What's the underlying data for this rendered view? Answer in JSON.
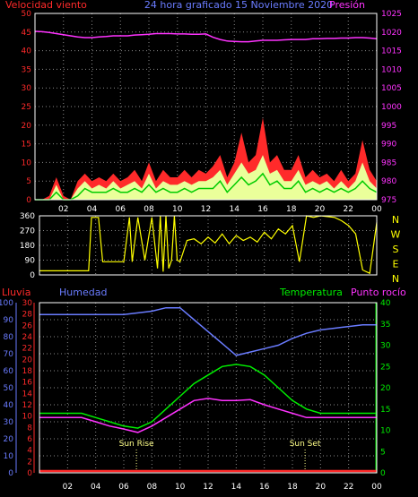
{
  "colors": {
    "background": "#000000",
    "frame": "#ffffff",
    "grid": "#8a8a8a",
    "wind_speed": "#ff2a2a",
    "wind_gust": "#eaff9a",
    "wind_avg": "#00cc00",
    "pressure": "#ff33ff",
    "wind_dir": "#ffff00",
    "rain": "#ff2a2a",
    "humidity": "#6a7cff",
    "temperature": "#00ee00",
    "dew_point": "#ff33ff",
    "sun_marker": "#ffff88"
  },
  "chart_data": [
    {
      "type": "area",
      "id": "wind-pressure",
      "header": {
        "left_label": "Velocidad viento",
        "title": "24 hora graficado   15 Noviembre 2020",
        "right_label": "Presión"
      },
      "x_ticks": [
        "02",
        "04",
        "06",
        "08",
        "10",
        "12",
        "14",
        "16",
        "18",
        "20",
        "22",
        "00"
      ],
      "left_axis": {
        "ylim": [
          0,
          50
        ],
        "ticks": [
          "0",
          "5",
          "10",
          "15",
          "20",
          "25",
          "30",
          "35",
          "40",
          "45",
          "50"
        ]
      },
      "right_axis": {
        "ylim": [
          975,
          1025
        ],
        "ticks": [
          "975",
          "980",
          "985",
          "990",
          "995",
          "1000",
          "1005",
          "1010",
          "1015",
          "1020",
          "1025"
        ]
      },
      "x": [
        0,
        0.5,
        1,
        1.5,
        2,
        2.5,
        3,
        3.5,
        4,
        4.5,
        5,
        5.5,
        6,
        6.5,
        7,
        7.5,
        8,
        8.5,
        9,
        9.5,
        10,
        10.5,
        11,
        11.5,
        12,
        12.5,
        13,
        13.5,
        14,
        14.5,
        15,
        15.5,
        16,
        16.5,
        17,
        17.5,
        18,
        18.5,
        19,
        19.5,
        20,
        20.5,
        21,
        21.5,
        22,
        22.5,
        23,
        23.5,
        24
      ],
      "series": [
        {
          "values": [
            0,
            0,
            1,
            6,
            1,
            0,
            5,
            7,
            5,
            6,
            5,
            7,
            5,
            6,
            8,
            5,
            10,
            5,
            8,
            6,
            6,
            8,
            6,
            8,
            7,
            9,
            12,
            6,
            10,
            18,
            10,
            12,
            22,
            10,
            12,
            8,
            8,
            12,
            6,
            8,
            6,
            7,
            5,
            8,
            5,
            7,
            16,
            8,
            5
          ]
        },
        {
          "values": [
            0,
            0,
            0,
            4,
            0,
            0,
            3,
            5,
            3,
            4,
            3,
            5,
            3,
            4,
            5,
            3,
            7,
            3,
            5,
            4,
            4,
            5,
            4,
            5,
            5,
            6,
            8,
            4,
            7,
            10,
            7,
            8,
            12,
            7,
            8,
            5,
            5,
            8,
            4,
            5,
            4,
            5,
            3,
            5,
            3,
            5,
            10,
            5,
            3
          ]
        },
        {
          "values": [
            0,
            0,
            0,
            2,
            0,
            0,
            1,
            3,
            2,
            2,
            2,
            3,
            2,
            2,
            3,
            2,
            4,
            2,
            3,
            2,
            2,
            3,
            2,
            3,
            3,
            3,
            5,
            2,
            4,
            6,
            4,
            5,
            7,
            4,
            5,
            3,
            3,
            5,
            2,
            3,
            2,
            3,
            2,
            3,
            2,
            3,
            5,
            3,
            2
          ]
        },
        {
          "values": [
            1020.2,
            1020.1,
            1019.9,
            1019.6,
            1019.3,
            1019.0,
            1018.7,
            1018.5,
            1018.5,
            1018.7,
            1018.8,
            1019.0,
            1019.0,
            1019.0,
            1019.2,
            1019.3,
            1019.4,
            1019.6,
            1019.6,
            1019.6,
            1019.5,
            1019.5,
            1019.4,
            1019.4,
            1019.5,
            1018.6,
            1018.0,
            1017.6,
            1017.5,
            1017.4,
            1017.4,
            1017.6,
            1017.8,
            1017.8,
            1017.8,
            1017.9,
            1018.0,
            1018.0,
            1018.0,
            1018.2,
            1018.2,
            1018.3,
            1018.3,
            1018.4,
            1018.4,
            1018.5,
            1018.5,
            1018.4,
            1018.2
          ]
        }
      ]
    },
    {
      "type": "line",
      "id": "wind-direction",
      "y_ticks": [
        "0",
        "90",
        "180",
        "270",
        "360"
      ],
      "ylim": [
        0,
        360
      ],
      "direction_labels": [
        "N",
        "W",
        "S",
        "E",
        "N"
      ],
      "x": [
        0,
        0.5,
        1,
        1.5,
        2,
        2.5,
        3,
        3.5,
        3.7,
        4.2,
        4.5,
        5,
        5.5,
        6,
        6.4,
        6.6,
        7,
        7.5,
        8,
        8.4,
        8.6,
        8.8,
        9,
        9.2,
        9.4,
        9.6,
        9.8,
        10,
        10.5,
        11,
        11.5,
        12,
        12.5,
        13,
        13.5,
        14,
        14.5,
        15,
        15.5,
        16,
        16.5,
        17,
        17.5,
        18,
        18.5,
        19,
        19.5,
        20,
        20.5,
        21,
        21.5,
        22,
        22.5,
        23,
        23.5,
        24
      ],
      "values": [
        25,
        25,
        25,
        25,
        25,
        25,
        25,
        25,
        350,
        350,
        80,
        80,
        80,
        80,
        350,
        80,
        350,
        90,
        350,
        40,
        360,
        20,
        360,
        40,
        90,
        360,
        90,
        80,
        210,
        220,
        190,
        230,
        195,
        250,
        190,
        240,
        210,
        230,
        200,
        260,
        220,
        280,
        250,
        300,
        80,
        360,
        350,
        360,
        355,
        350,
        330,
        300,
        250,
        30,
        10,
        320
      ]
    },
    {
      "type": "line",
      "id": "humidity-temperature",
      "header": {
        "rain_label": "Lluvia",
        "humidity_label": "Humedad",
        "temperature_label": "Temperatura",
        "dew_label": "Punto rocío"
      },
      "x_ticks": [
        "02",
        "04",
        "06",
        "08",
        "10",
        "12",
        "14",
        "16",
        "18",
        "20",
        "22",
        "00"
      ],
      "humidity_axis": {
        "ylim": [
          0,
          100
        ],
        "ticks": [
          "0",
          "10",
          "20",
          "30",
          "40",
          "50",
          "60",
          "70",
          "80",
          "90",
          "100"
        ]
      },
      "rain_axis": {
        "ylim": [
          0,
          30
        ],
        "ticks": [
          "0",
          "2",
          "4",
          "6",
          "8",
          "10",
          "12",
          "14",
          "16",
          "18",
          "20",
          "22",
          "24",
          "26",
          "28",
          "30"
        ]
      },
      "temperature_axis": {
        "ylim": [
          0,
          40
        ],
        "ticks": [
          "0",
          "5",
          "10",
          "15",
          "20",
          "25",
          "30",
          "35",
          "40"
        ]
      },
      "x": [
        0,
        1,
        2,
        3,
        4,
        5,
        6,
        7,
        8,
        9,
        10,
        11,
        12,
        13,
        14,
        15,
        16,
        17,
        18,
        19,
        20,
        21,
        22,
        23,
        24
      ],
      "series": [
        {
          "values": [
            93,
            93,
            93,
            93,
            93,
            93,
            93,
            94,
            95,
            97,
            97,
            90,
            83,
            76,
            69,
            71,
            73,
            75,
            79,
            82,
            84,
            85,
            86,
            87,
            87
          ]
        },
        {
          "values": [
            14,
            14,
            14,
            14,
            13,
            12,
            11,
            10.5,
            12,
            15,
            18,
            21,
            23,
            25,
            25.5,
            25,
            23,
            20,
            17,
            15,
            14,
            14,
            14,
            14,
            14
          ]
        },
        {
          "values": [
            13,
            13,
            13,
            13,
            12,
            11,
            10.3,
            9.5,
            11,
            13,
            15,
            17,
            17.5,
            17,
            17,
            17.2,
            16,
            15,
            14,
            13,
            13,
            13,
            13,
            13,
            13
          ]
        },
        {
          "values": [
            0,
            0,
            0,
            0,
            0,
            0,
            0,
            0,
            0,
            0,
            0,
            0,
            0,
            0,
            0,
            0,
            0,
            0,
            0,
            0,
            0,
            0,
            0,
            0,
            0
          ]
        }
      ],
      "markers": [
        {
          "label": "Sun Rise",
          "x": 6.9
        },
        {
          "label": "Sun Set",
          "x": 18.9
        }
      ]
    }
  ]
}
